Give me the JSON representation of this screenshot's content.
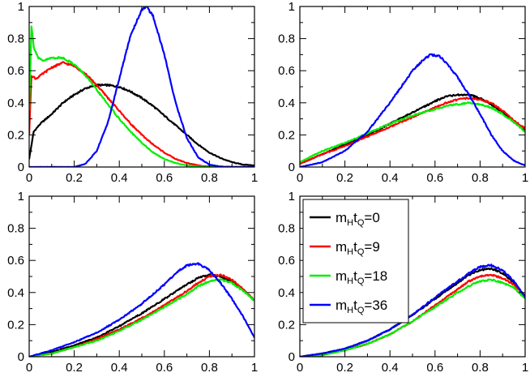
{
  "chart_data": [
    {
      "type": "line",
      "panel": "top-left",
      "xlim": [
        0,
        1
      ],
      "ylim": [
        0,
        1
      ],
      "xticks": [
        "0",
        "0.2",
        "0.4",
        "0.6",
        "0.8",
        "1"
      ],
      "yticks": [
        "0",
        "0.2",
        "0.4",
        "0.6",
        "0.8",
        "1"
      ],
      "series": [
        {
          "name": "mHtQ=0",
          "color": "#000000",
          "x": [
            0,
            0.02,
            0.05,
            0.1,
            0.15,
            0.2,
            0.25,
            0.3,
            0.35,
            0.4,
            0.45,
            0.5,
            0.55,
            0.6,
            0.65,
            0.7,
            0.75,
            0.8,
            0.85,
            0.9,
            0.95,
            1.0
          ],
          "y": [
            0.05,
            0.22,
            0.27,
            0.33,
            0.4,
            0.45,
            0.49,
            0.51,
            0.51,
            0.5,
            0.47,
            0.43,
            0.38,
            0.32,
            0.26,
            0.2,
            0.14,
            0.09,
            0.055,
            0.03,
            0.015,
            0.01
          ]
        },
        {
          "name": "mHtQ=9",
          "color": "#ff0000",
          "x": [
            0,
            0.01,
            0.03,
            0.05,
            0.1,
            0.15,
            0.2,
            0.25,
            0.3,
            0.35,
            0.4,
            0.45,
            0.5,
            0.55,
            0.6,
            0.65,
            0.7,
            0.75,
            0.8,
            0.85,
            0.9,
            1.0
          ],
          "y": [
            0.2,
            0.57,
            0.55,
            0.57,
            0.62,
            0.65,
            0.63,
            0.58,
            0.51,
            0.43,
            0.35,
            0.27,
            0.2,
            0.14,
            0.09,
            0.05,
            0.025,
            0.01,
            0.003,
            0.0,
            0.0,
            0.0
          ]
        },
        {
          "name": "mHtQ=18",
          "color": "#00ee00",
          "x": [
            0,
            0.01,
            0.02,
            0.04,
            0.06,
            0.1,
            0.15,
            0.2,
            0.25,
            0.3,
            0.35,
            0.4,
            0.45,
            0.5,
            0.55,
            0.6,
            0.65,
            0.7,
            0.75,
            0.8,
            0.9,
            1.0
          ],
          "y": [
            0.35,
            0.88,
            0.75,
            0.68,
            0.66,
            0.68,
            0.68,
            0.64,
            0.57,
            0.48,
            0.39,
            0.3,
            0.22,
            0.15,
            0.09,
            0.05,
            0.025,
            0.01,
            0.003,
            0.0,
            0.0,
            0.0
          ]
        },
        {
          "name": "mHtQ=36",
          "color": "#0000ff",
          "x": [
            0,
            0.2,
            0.25,
            0.3,
            0.35,
            0.4,
            0.45,
            0.5,
            0.52,
            0.55,
            0.6,
            0.65,
            0.7,
            0.75,
            0.8,
            0.85,
            0.9,
            1.0
          ],
          "y": [
            0.0,
            0.0,
            0.02,
            0.1,
            0.28,
            0.55,
            0.82,
            0.98,
            1.0,
            0.94,
            0.7,
            0.4,
            0.18,
            0.06,
            0.015,
            0.003,
            0.0,
            0.0
          ]
        }
      ]
    },
    {
      "type": "line",
      "panel": "top-right",
      "xlim": [
        0,
        1
      ],
      "ylim": [
        0,
        1
      ],
      "xticks": [
        "0",
        "0.2",
        "0.4",
        "0.6",
        "0.8",
        "1"
      ],
      "yticks": [
        "0",
        "0.2",
        "0.4",
        "0.6",
        "0.8",
        "1"
      ],
      "series": [
        {
          "name": "mHtQ=0",
          "color": "#000000",
          "x": [
            0,
            0.1,
            0.2,
            0.3,
            0.4,
            0.5,
            0.6,
            0.65,
            0.7,
            0.75,
            0.8,
            0.85,
            0.9,
            0.95,
            1.0
          ],
          "y": [
            0.02,
            0.08,
            0.14,
            0.2,
            0.27,
            0.34,
            0.41,
            0.44,
            0.45,
            0.45,
            0.43,
            0.39,
            0.34,
            0.28,
            0.23
          ]
        },
        {
          "name": "mHtQ=9",
          "color": "#ff0000",
          "x": [
            0,
            0.1,
            0.2,
            0.3,
            0.4,
            0.5,
            0.6,
            0.65,
            0.7,
            0.75,
            0.8,
            0.85,
            0.9,
            0.95,
            1.0
          ],
          "y": [
            0.02,
            0.08,
            0.13,
            0.19,
            0.25,
            0.31,
            0.37,
            0.4,
            0.42,
            0.43,
            0.42,
            0.4,
            0.35,
            0.29,
            0.24
          ]
        },
        {
          "name": "mHtQ=18",
          "color": "#00ee00",
          "x": [
            0,
            0.1,
            0.2,
            0.3,
            0.4,
            0.5,
            0.6,
            0.65,
            0.7,
            0.75,
            0.8,
            0.85,
            0.9,
            0.95,
            1.0
          ],
          "y": [
            0.03,
            0.1,
            0.15,
            0.21,
            0.27,
            0.32,
            0.36,
            0.38,
            0.39,
            0.4,
            0.39,
            0.37,
            0.33,
            0.28,
            0.22
          ]
        },
        {
          "name": "mHtQ=36",
          "color": "#0000ff",
          "x": [
            0,
            0.1,
            0.2,
            0.3,
            0.4,
            0.45,
            0.5,
            0.55,
            0.58,
            0.62,
            0.65,
            0.7,
            0.75,
            0.8,
            0.85,
            0.9,
            0.95,
            1.0
          ],
          "y": [
            0.0,
            0.03,
            0.1,
            0.22,
            0.4,
            0.5,
            0.6,
            0.67,
            0.7,
            0.69,
            0.65,
            0.56,
            0.45,
            0.33,
            0.2,
            0.1,
            0.04,
            0.01
          ]
        }
      ]
    },
    {
      "type": "line",
      "panel": "bottom-left",
      "xlim": [
        0,
        1
      ],
      "ylim": [
        0,
        1
      ],
      "xticks": [
        "0",
        "0.2",
        "0.4",
        "0.6",
        "0.8",
        "1"
      ],
      "yticks": [
        "0",
        "0.2",
        "0.4",
        "0.6",
        "0.8",
        "1"
      ],
      "series": [
        {
          "name": "mHtQ=0",
          "color": "#000000",
          "x": [
            0,
            0.1,
            0.2,
            0.3,
            0.4,
            0.5,
            0.6,
            0.7,
            0.75,
            0.8,
            0.85,
            0.9,
            0.95,
            1.0
          ],
          "y": [
            0.0,
            0.03,
            0.07,
            0.12,
            0.19,
            0.27,
            0.36,
            0.45,
            0.49,
            0.51,
            0.5,
            0.47,
            0.42,
            0.35
          ]
        },
        {
          "name": "mHtQ=9",
          "color": "#ff0000",
          "x": [
            0,
            0.1,
            0.2,
            0.3,
            0.4,
            0.5,
            0.6,
            0.7,
            0.75,
            0.8,
            0.85,
            0.9,
            0.95,
            1.0
          ],
          "y": [
            0.0,
            0.02,
            0.06,
            0.11,
            0.17,
            0.24,
            0.32,
            0.41,
            0.46,
            0.5,
            0.51,
            0.48,
            0.42,
            0.35
          ]
        },
        {
          "name": "mHtQ=18",
          "color": "#00ee00",
          "x": [
            0,
            0.1,
            0.2,
            0.3,
            0.4,
            0.5,
            0.6,
            0.7,
            0.75,
            0.8,
            0.85,
            0.9,
            0.95,
            1.0
          ],
          "y": [
            0.0,
            0.02,
            0.06,
            0.1,
            0.16,
            0.23,
            0.31,
            0.39,
            0.44,
            0.47,
            0.48,
            0.46,
            0.41,
            0.35
          ]
        },
        {
          "name": "mHtQ=36",
          "color": "#0000ff",
          "x": [
            0,
            0.1,
            0.2,
            0.3,
            0.4,
            0.5,
            0.6,
            0.65,
            0.7,
            0.75,
            0.8,
            0.85,
            0.9,
            0.95,
            1.0
          ],
          "y": [
            0.0,
            0.04,
            0.09,
            0.15,
            0.23,
            0.33,
            0.45,
            0.52,
            0.57,
            0.58,
            0.54,
            0.46,
            0.36,
            0.25,
            0.12
          ]
        }
      ]
    },
    {
      "type": "line",
      "panel": "bottom-right",
      "xlim": [
        0,
        1
      ],
      "ylim": [
        0,
        1
      ],
      "xticks": [
        "0",
        "0.2",
        "0.4",
        "0.6",
        "0.8",
        "1"
      ],
      "yticks": [
        "0",
        "0.2",
        "0.4",
        "0.6",
        "0.8",
        "1"
      ],
      "legend_position": "top-left",
      "series": [
        {
          "name": "mHtQ=0",
          "color": "#000000",
          "x": [
            0,
            0.1,
            0.2,
            0.3,
            0.4,
            0.5,
            0.6,
            0.7,
            0.75,
            0.8,
            0.85,
            0.9,
            0.95,
            1.0
          ],
          "y": [
            0.0,
            0.02,
            0.05,
            0.1,
            0.17,
            0.26,
            0.36,
            0.46,
            0.51,
            0.54,
            0.55,
            0.52,
            0.46,
            0.37
          ]
        },
        {
          "name": "mHtQ=9",
          "color": "#ff0000",
          "x": [
            0,
            0.1,
            0.2,
            0.3,
            0.4,
            0.5,
            0.6,
            0.7,
            0.75,
            0.8,
            0.85,
            0.9,
            0.95,
            1.0
          ],
          "y": [
            0.0,
            0.01,
            0.04,
            0.08,
            0.14,
            0.22,
            0.32,
            0.42,
            0.47,
            0.5,
            0.51,
            0.49,
            0.45,
            0.38
          ]
        },
        {
          "name": "mHtQ=18",
          "color": "#00ee00",
          "x": [
            0,
            0.1,
            0.2,
            0.3,
            0.4,
            0.5,
            0.6,
            0.7,
            0.75,
            0.8,
            0.85,
            0.9,
            0.95,
            1.0
          ],
          "y": [
            0.0,
            0.01,
            0.04,
            0.08,
            0.14,
            0.22,
            0.31,
            0.4,
            0.44,
            0.47,
            0.48,
            0.46,
            0.43,
            0.36
          ]
        },
        {
          "name": "mHtQ=36",
          "color": "#0000ff",
          "x": [
            0,
            0.1,
            0.2,
            0.3,
            0.4,
            0.5,
            0.6,
            0.7,
            0.75,
            0.8,
            0.85,
            0.9,
            0.95,
            1.0
          ],
          "y": [
            0.0,
            0.02,
            0.05,
            0.1,
            0.17,
            0.26,
            0.37,
            0.47,
            0.52,
            0.56,
            0.57,
            0.54,
            0.47,
            0.37
          ]
        }
      ]
    }
  ],
  "legend": [
    {
      "base": "m",
      "sub1": "H",
      "mid": "t",
      "sub2": "Q",
      "tail": "=0",
      "color": "#000000"
    },
    {
      "base": "m",
      "sub1": "H",
      "mid": "t",
      "sub2": "Q",
      "tail": "=9",
      "color": "#ff0000"
    },
    {
      "base": "m",
      "sub1": "H",
      "mid": "t",
      "sub2": "Q",
      "tail": "=18",
      "color": "#00ee00"
    },
    {
      "base": "m",
      "sub1": "H",
      "mid": "t",
      "sub2": "Q",
      "tail": "=36",
      "color": "#0000ff"
    }
  ]
}
